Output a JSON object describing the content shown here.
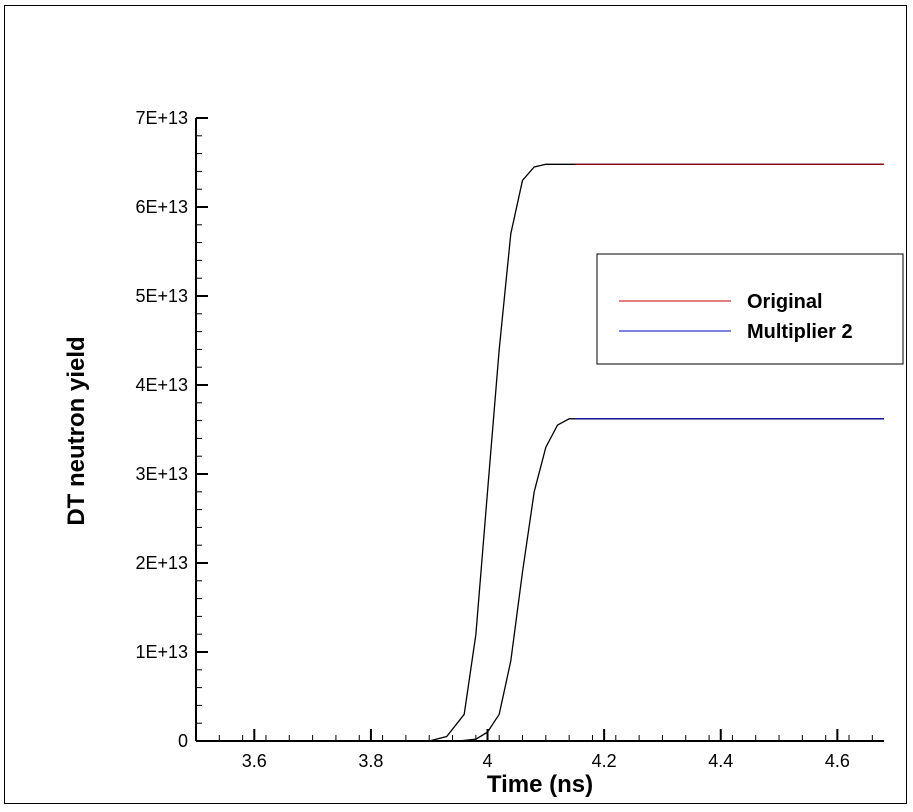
{
  "chart_data": {
    "type": "line",
    "xlabel": "Time (ns)",
    "ylabel": "DT neutron yield",
    "xlim": [
      3.5,
      4.68
    ],
    "ylim": [
      0,
      70000000000000.0
    ],
    "xticks": [
      3.6,
      3.8,
      4.0,
      4.2,
      4.4,
      4.6
    ],
    "xtick_labels": [
      "3.6",
      "3.8",
      "4",
      "4.2",
      "4.4",
      "4.6"
    ],
    "yticks": [
      0,
      10000000000000.0,
      20000000000000.0,
      30000000000000.0,
      40000000000000.0,
      50000000000000.0,
      60000000000000.0,
      70000000000000.0
    ],
    "ytick_labels": [
      "0",
      "1E+13",
      "2E+13",
      "3E+13",
      "4E+13",
      "5E+13",
      "6E+13",
      "7E+13"
    ],
    "grid": false,
    "legend": {
      "placement": "right"
    },
    "series": [
      {
        "name": "Original",
        "color": "#c00000",
        "x": [
          3.5,
          3.9,
          3.93,
          3.96,
          3.98,
          4.0,
          4.02,
          4.04,
          4.06,
          4.08,
          4.1,
          4.15,
          4.2,
          4.3,
          4.4,
          4.5,
          4.68
        ],
        "y": [
          0,
          0,
          500000000000.0,
          3000000000000.0,
          12000000000000.0,
          28000000000000.0,
          44000000000000.0,
          57000000000000.0,
          63000000000000.0,
          64500000000000.0,
          64800000000000.0,
          64800000000000.0,
          64800000000000.0,
          64800000000000.0,
          64800000000000.0,
          64800000000000.0,
          64800000000000.0
        ]
      },
      {
        "name": "Multiplier 2",
        "color": "#0000c0",
        "x": [
          3.5,
          3.95,
          3.98,
          4.0,
          4.02,
          4.04,
          4.06,
          4.08,
          4.1,
          4.12,
          4.14,
          4.2,
          4.3,
          4.4,
          4.5,
          4.68
        ],
        "y": [
          0,
          0,
          200000000000.0,
          1000000000000.0,
          3000000000000.0,
          9000000000000.0,
          19000000000000.0,
          28000000000000.0,
          33000000000000.0,
          35500000000000.0,
          36200000000000.0,
          36200000000000.0,
          36200000000000.0,
          36200000000000.0,
          36200000000000.0,
          36200000000000.0
        ]
      }
    ]
  }
}
